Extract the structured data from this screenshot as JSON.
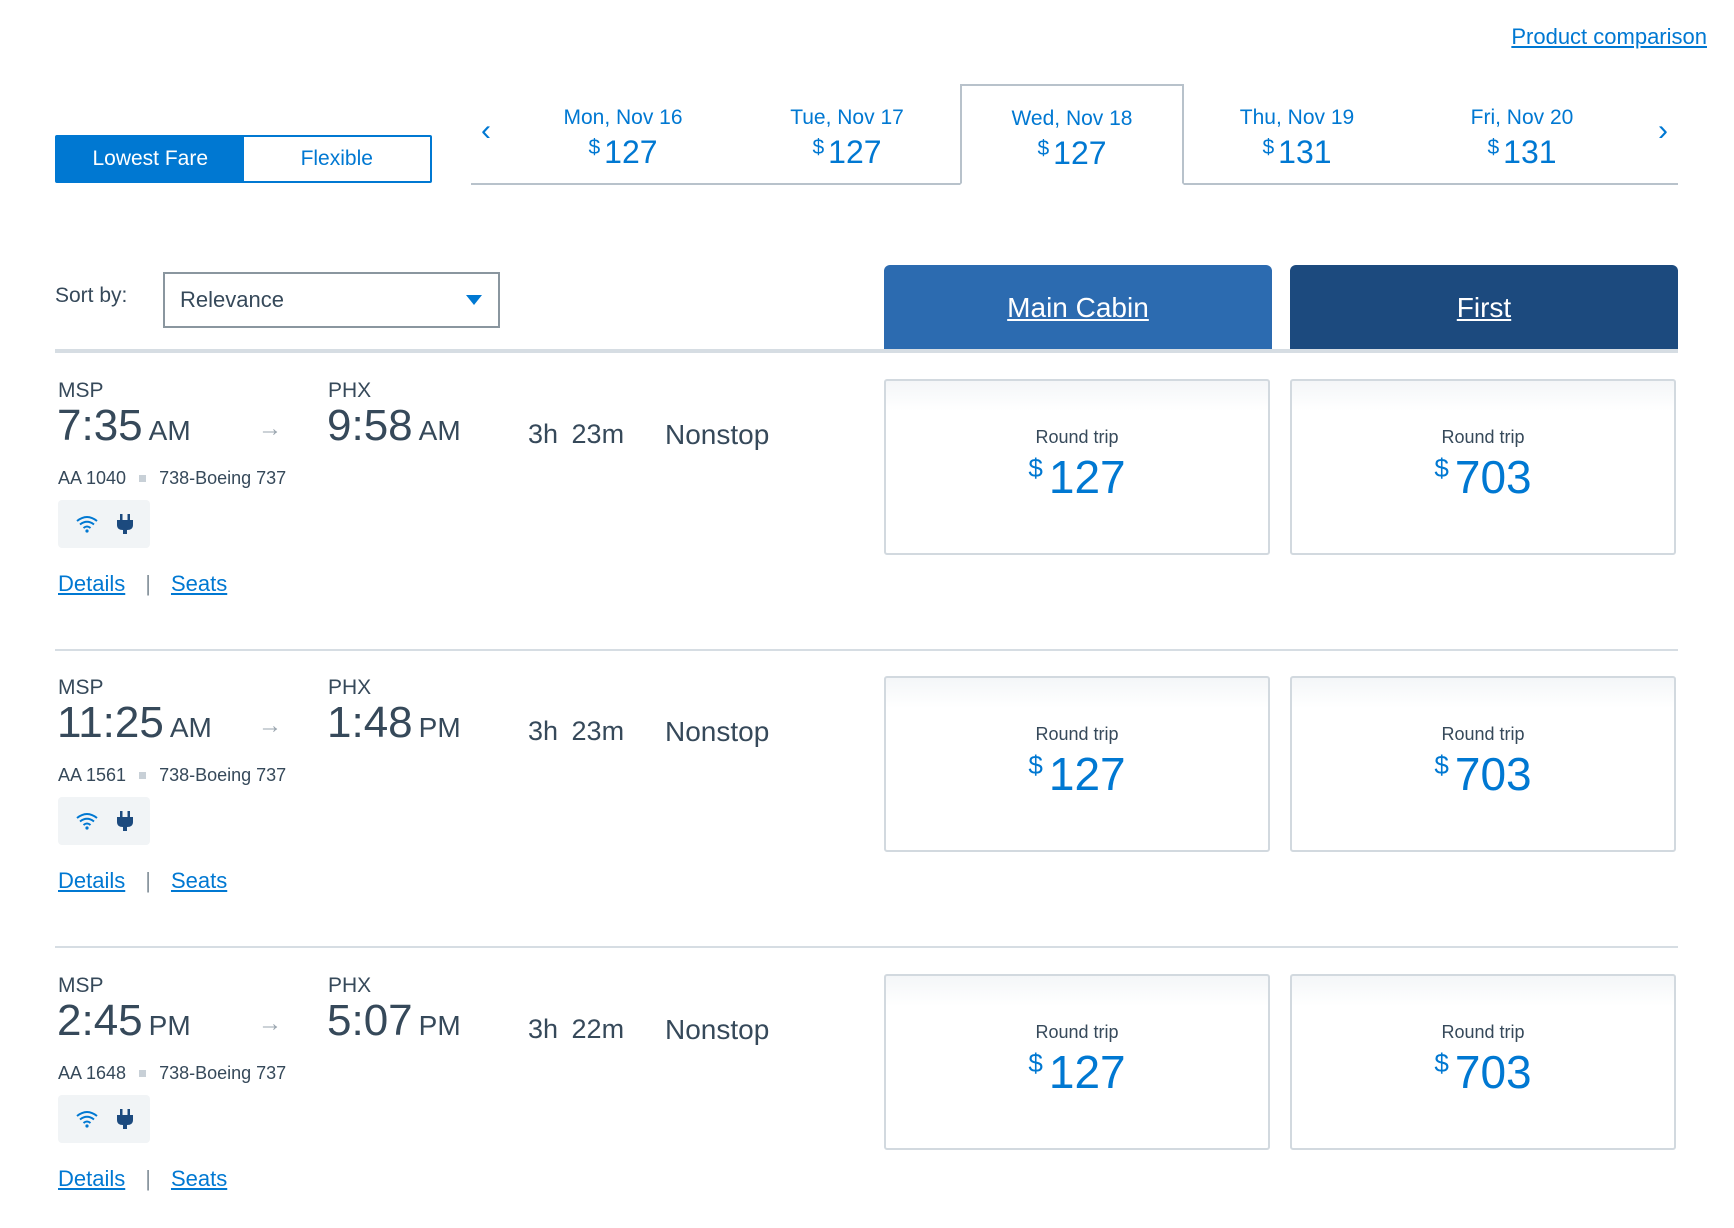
{
  "header": {
    "product_link": "Product comparison"
  },
  "fare_toggle": {
    "lowest": "Lowest Fare",
    "flexible": "Flexible",
    "selected": "Lowest Fare"
  },
  "date_strip": {
    "prev_icon": "chevron-left-icon",
    "next_icon": "chevron-right-icon",
    "dates": [
      {
        "day": "Mon, Nov 16",
        "currency": "$",
        "price": "127"
      },
      {
        "day": "Tue, Nov 17",
        "currency": "$",
        "price": "127"
      },
      {
        "day": "Wed, Nov 18",
        "currency": "$",
        "price": "127",
        "selected": true
      },
      {
        "day": "Thu, Nov 19",
        "currency": "$",
        "price": "131"
      },
      {
        "day": "Fri, Nov 20",
        "currency": "$",
        "price": "131"
      }
    ]
  },
  "sort": {
    "label": "Sort by:",
    "value": "Relevance"
  },
  "cabins": {
    "main": "Main Cabin",
    "first": "First"
  },
  "colors": {
    "accent": "#0078d2",
    "main_cabin": "#2c6bb0",
    "first_cabin": "#1c4a7e",
    "text": "#36495a"
  },
  "flights": [
    {
      "origin": "MSP",
      "dep_time": "7:35",
      "dep_ampm": "AM",
      "dest": "PHX",
      "arr_time": "9:58",
      "arr_ampm": "AM",
      "duration": "3h 23m",
      "stops": "Nonstop",
      "flight_no": "AA 1040",
      "aircraft": "738-Boeing 737",
      "amenities": [
        "wifi-icon",
        "power-outlet-icon"
      ],
      "details": "Details",
      "seats": "Seats",
      "main_label": "Round trip",
      "main_currency": "$",
      "main_price": "127",
      "first_label": "Round trip",
      "first_currency": "$",
      "first_price": "703"
    },
    {
      "origin": "MSP",
      "dep_time": "11:25",
      "dep_ampm": "AM",
      "dest": "PHX",
      "arr_time": "1:48",
      "arr_ampm": "PM",
      "duration": "3h 23m",
      "stops": "Nonstop",
      "flight_no": "AA 1561",
      "aircraft": "738-Boeing 737",
      "amenities": [
        "wifi-icon",
        "power-outlet-icon"
      ],
      "details": "Details",
      "seats": "Seats",
      "main_label": "Round trip",
      "main_currency": "$",
      "main_price": "127",
      "first_label": "Round trip",
      "first_currency": "$",
      "first_price": "703"
    },
    {
      "origin": "MSP",
      "dep_time": "2:45",
      "dep_ampm": "PM",
      "dest": "PHX",
      "arr_time": "5:07",
      "arr_ampm": "PM",
      "duration": "3h 22m",
      "stops": "Nonstop",
      "flight_no": "AA 1648",
      "aircraft": "738-Boeing 737",
      "amenities": [
        "wifi-icon",
        "power-outlet-icon"
      ],
      "details": "Details",
      "seats": "Seats",
      "main_label": "Round trip",
      "main_currency": "$",
      "main_price": "127",
      "first_label": "Round trip",
      "first_currency": "$",
      "first_price": "703"
    }
  ]
}
